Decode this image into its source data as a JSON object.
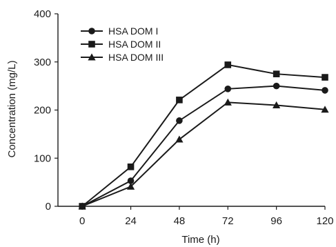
{
  "chart_data": {
    "type": "line",
    "xlabel": "Time (h)",
    "ylabel": "Concentration (mg/L)",
    "x": [
      0,
      24,
      48,
      72,
      96,
      120
    ],
    "xlim": [
      -12,
      120
    ],
    "ylim": [
      0,
      400
    ],
    "xticks": [
      0,
      24,
      48,
      72,
      96,
      120
    ],
    "yticks": [
      0,
      100,
      200,
      300,
      400
    ],
    "grid": false,
    "legend_position": "top-left",
    "line_color": "#1a1a1a",
    "series": [
      {
        "name": "HSA DOM I",
        "marker": "circle",
        "values": [
          0,
          53,
          178,
          244,
          250,
          241
        ]
      },
      {
        "name": "HSA DOM II",
        "marker": "square",
        "values": [
          0,
          82,
          221,
          294,
          275,
          268
        ]
      },
      {
        "name": "HSA DOM III",
        "marker": "triangle",
        "values": [
          0,
          41,
          139,
          216,
          210,
          201
        ]
      }
    ]
  }
}
